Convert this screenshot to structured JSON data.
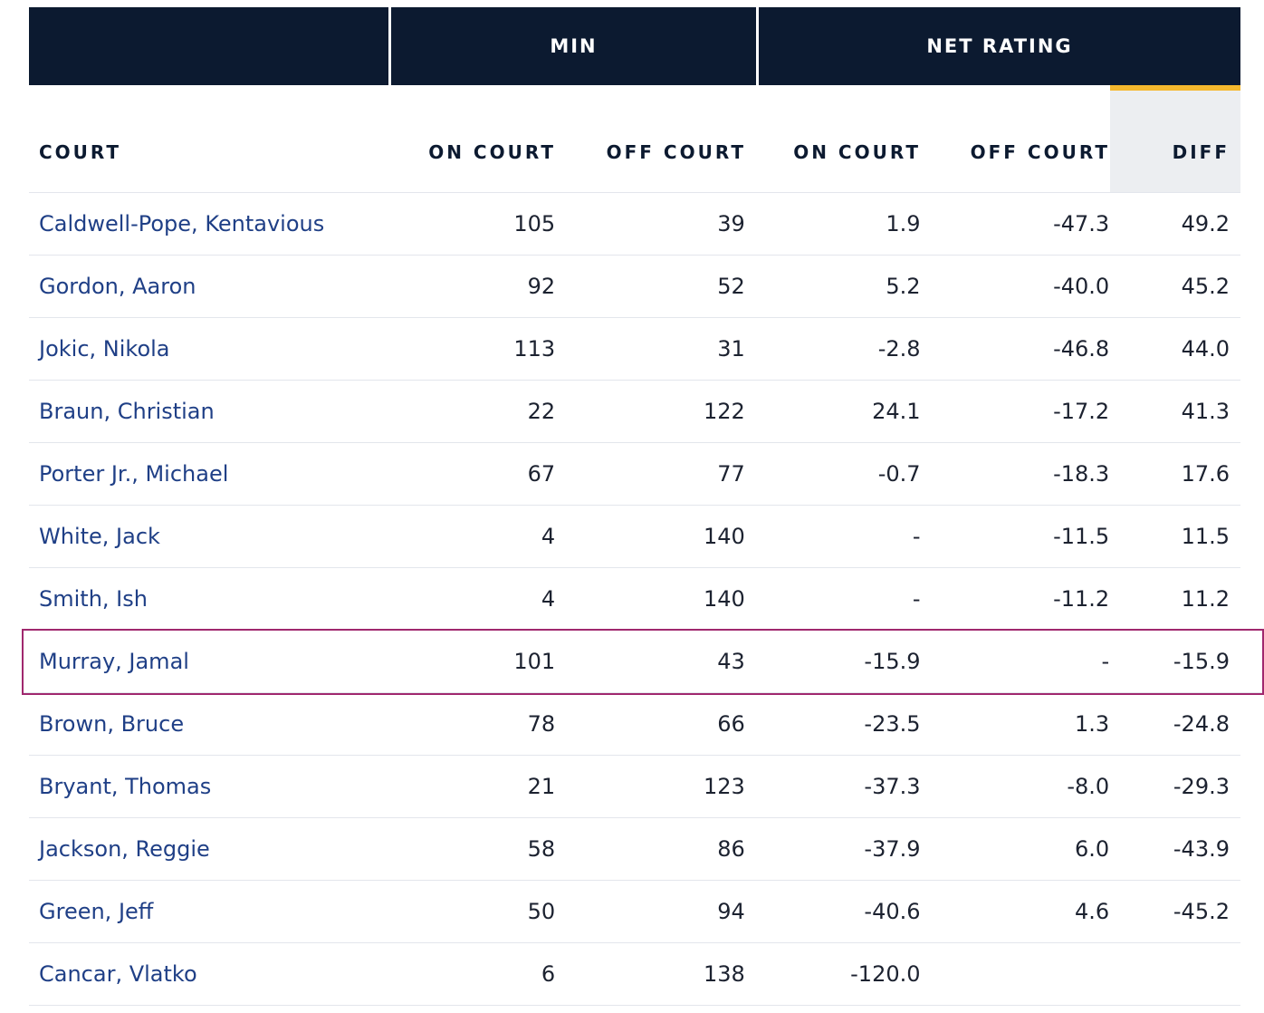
{
  "group_headers": {
    "name": "",
    "min": "MIN",
    "net_rating": "NET RATING"
  },
  "columns": {
    "court": "COURT",
    "min_on": "ON COURT",
    "min_off": "OFF COURT",
    "net_on": "ON COURT",
    "net_off": "OFF COURT",
    "diff": "DIFF"
  },
  "colors": {
    "header_bg": "#0c1a30",
    "sort_accent": "#f5b82e",
    "highlight": "#a0286e",
    "link": "#1f3f86"
  },
  "highlighted_row": "Murray, Jamal",
  "rows": [
    {
      "name": "Caldwell-Pope, Kentavious",
      "min_on": "105",
      "min_off": "39",
      "net_on": "1.9",
      "net_off": "-47.3",
      "diff": "49.2"
    },
    {
      "name": "Gordon, Aaron",
      "min_on": "92",
      "min_off": "52",
      "net_on": "5.2",
      "net_off": "-40.0",
      "diff": "45.2"
    },
    {
      "name": "Jokic, Nikola",
      "min_on": "113",
      "min_off": "31",
      "net_on": "-2.8",
      "net_off": "-46.8",
      "diff": "44.0"
    },
    {
      "name": "Braun, Christian",
      "min_on": "22",
      "min_off": "122",
      "net_on": "24.1",
      "net_off": "-17.2",
      "diff": "41.3"
    },
    {
      "name": "Porter Jr., Michael",
      "min_on": "67",
      "min_off": "77",
      "net_on": "-0.7",
      "net_off": "-18.3",
      "diff": "17.6"
    },
    {
      "name": "White, Jack",
      "min_on": "4",
      "min_off": "140",
      "net_on": "-",
      "net_off": "-11.5",
      "diff": "11.5"
    },
    {
      "name": "Smith, Ish",
      "min_on": "4",
      "min_off": "140",
      "net_on": "-",
      "net_off": "-11.2",
      "diff": "11.2"
    },
    {
      "name": "Murray, Jamal",
      "min_on": "101",
      "min_off": "43",
      "net_on": "-15.9",
      "net_off": "-",
      "diff": "-15.9"
    },
    {
      "name": "Brown, Bruce",
      "min_on": "78",
      "min_off": "66",
      "net_on": "-23.5",
      "net_off": "1.3",
      "diff": "-24.8"
    },
    {
      "name": "Bryant, Thomas",
      "min_on": "21",
      "min_off": "123",
      "net_on": "-37.3",
      "net_off": "-8.0",
      "diff": "-29.3"
    },
    {
      "name": "Jackson, Reggie",
      "min_on": "58",
      "min_off": "86",
      "net_on": "-37.9",
      "net_off": "6.0",
      "diff": "-43.9"
    },
    {
      "name": "Green, Jeff",
      "min_on": "50",
      "min_off": "94",
      "net_on": "-40.6",
      "net_off": "4.6",
      "diff": "-45.2"
    },
    {
      "name": "Cancar, Vlatko",
      "min_on": "6",
      "min_off": "138",
      "net_on": "-120.0",
      "net_off": "",
      "diff": ""
    }
  ]
}
